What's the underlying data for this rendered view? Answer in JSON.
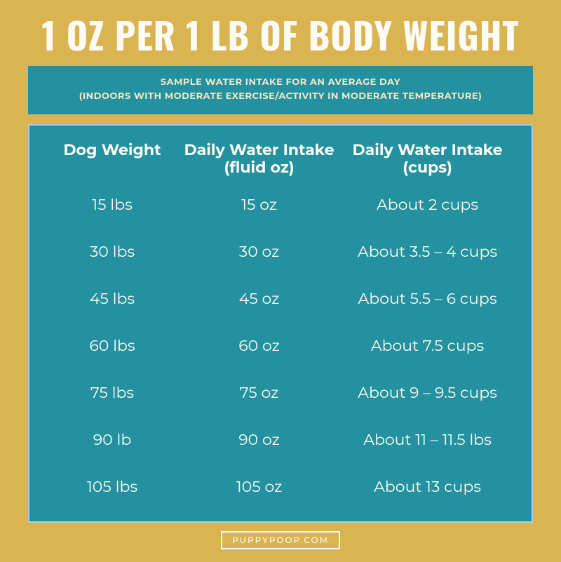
{
  "colors": {
    "background": "#d9b451",
    "panel": "#23919f",
    "panel_border": "#9fd4da",
    "title_text": "#fdfbf3",
    "subtitle_text": "#f3e7c6",
    "table_text": "#fdfbf3",
    "footer_border": "#fdfbf3"
  },
  "title": "1 OZ PER 1 LB OF BODY WEIGHT",
  "subtitle": {
    "line1": "SAMPLE WATER INTAKE FOR AN AVERAGE DAY",
    "line2": "(INDOORS WITH MODERATE EXERCISE/ACTIVITY IN MODERATE TEMPERATURE)"
  },
  "table": {
    "type": "table",
    "columns": [
      "Dog Weight",
      "Daily Water Intake\n(fluid oz)",
      "Daily Water Intake\n(cups)"
    ],
    "rows": [
      [
        "15 lbs",
        "15 oz",
        "About 2 cups"
      ],
      [
        "30 lbs",
        "30 oz",
        "About 3.5 – 4 cups"
      ],
      [
        "45 lbs",
        "45 oz",
        "About 5.5 – 6 cups"
      ],
      [
        "60 lbs",
        "60 oz",
        "About 7.5 cups"
      ],
      [
        "75 lbs",
        "75 oz",
        "About 9 – 9.5 cups"
      ],
      [
        "90 lb",
        "90 oz",
        "About 11 – 11.5 lbs"
      ],
      [
        "105 lbs",
        "105 oz",
        "About 13 cups"
      ]
    ],
    "header_fontsize": 22,
    "cell_fontsize": 22,
    "column_widths_pct": [
      29,
      33,
      38
    ]
  },
  "footer": "PUPPYPOOP.COM"
}
